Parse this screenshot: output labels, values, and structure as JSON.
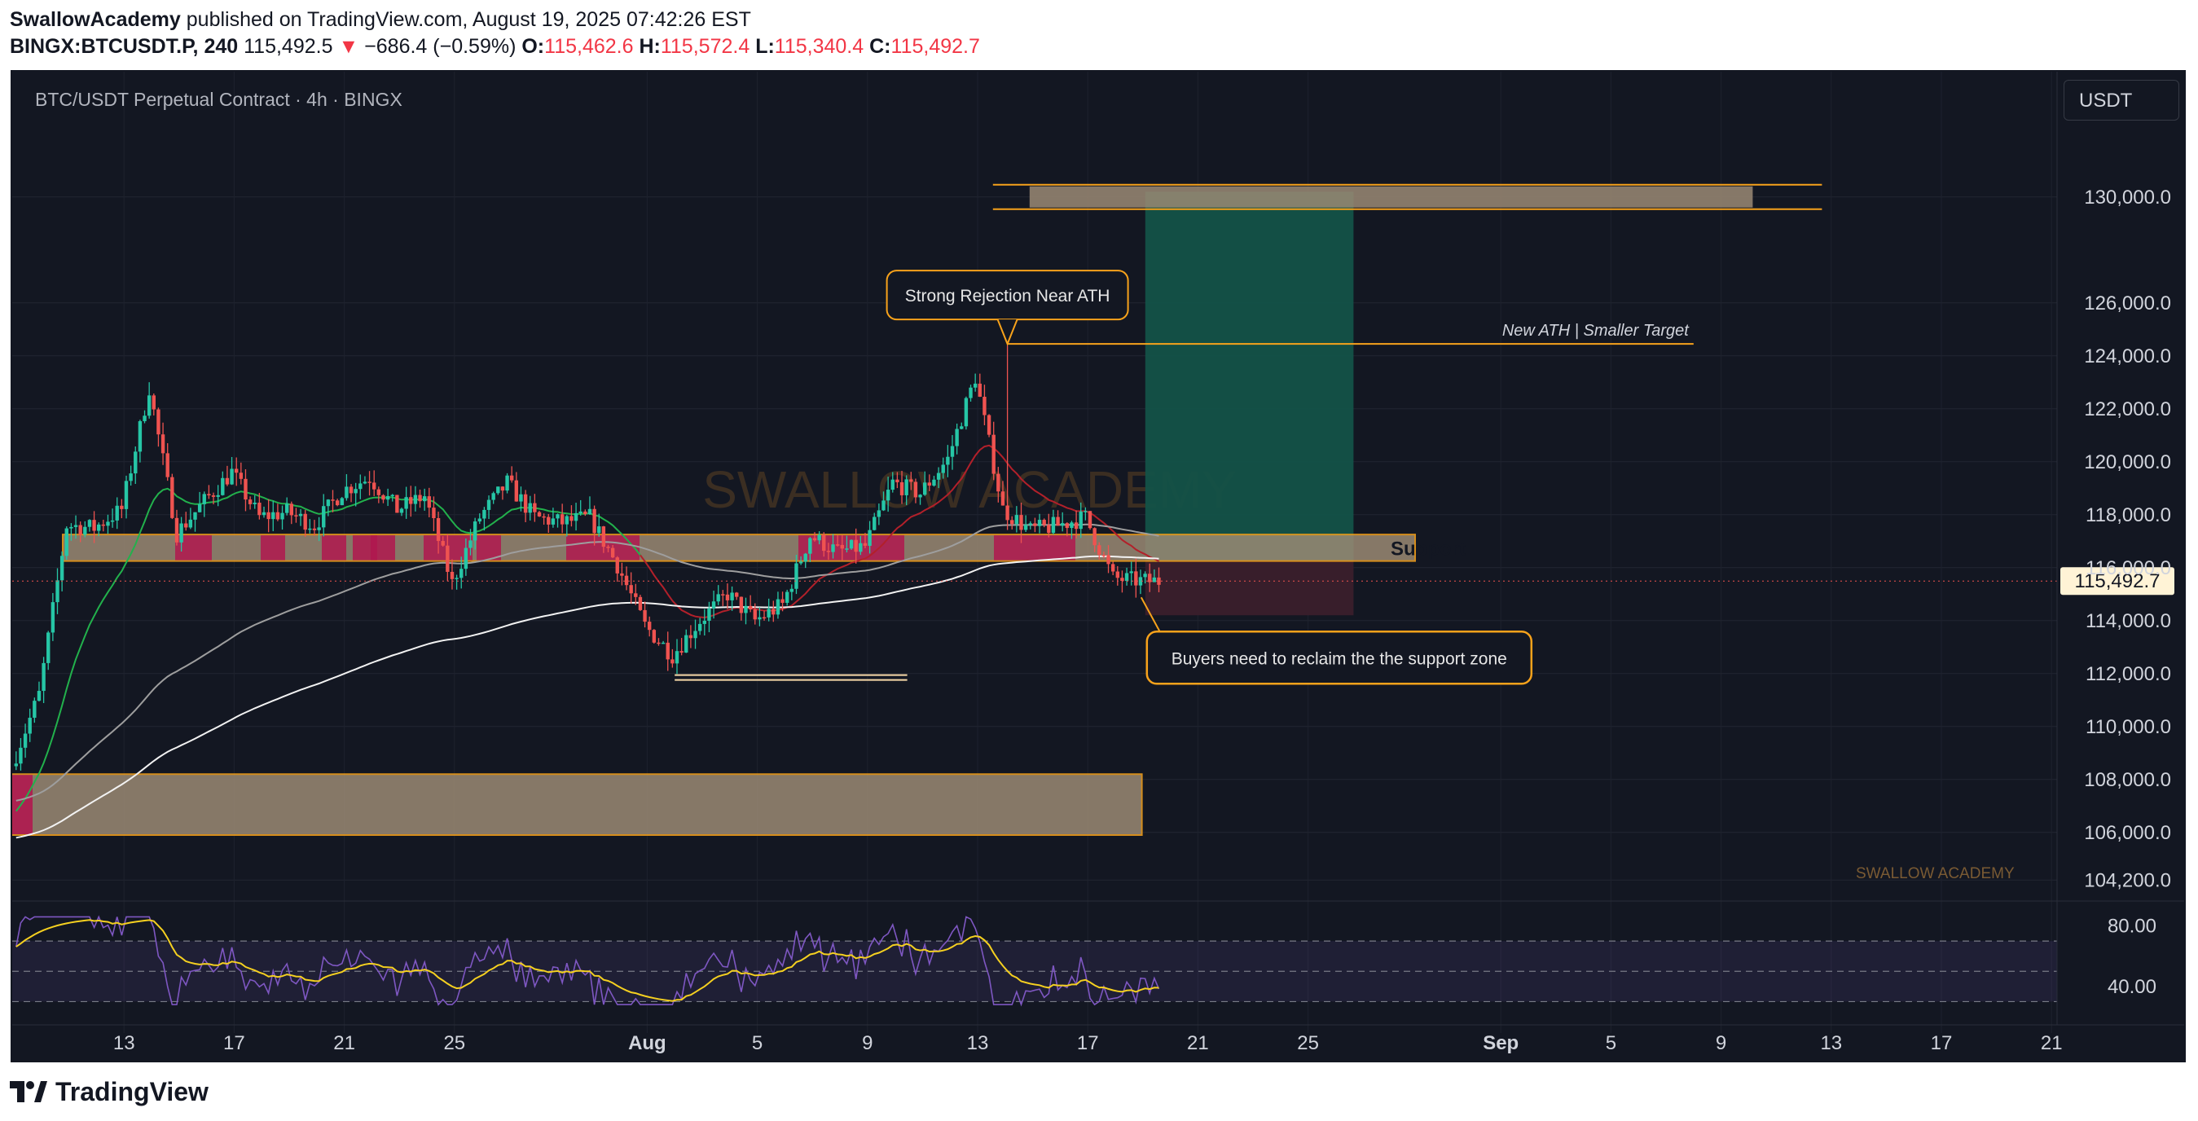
{
  "header": {
    "author": "SwallowAcademy",
    "published_text": "published on TradingView.com, August 19, 2025 07:42:26 EST",
    "symbol": "BINGX:BTCUSDT.P, 240",
    "last": "115,492.5",
    "down_arrow": "▼",
    "change": "−686.4 (−0.59%)",
    "o_label": "O:",
    "o_value": "115,462.6",
    "h_label": "H:",
    "h_value": "115,572.4",
    "l_label": "L:",
    "l_value": "115,340.4",
    "c_label": "C:",
    "c_value": "115,492.7"
  },
  "legend": {
    "title": "BTC/USDT Perpetual Contract · 4h · BINGX"
  },
  "currency": "USDT",
  "watermark": "SWALLOW ACADEMY",
  "watermark_small": "SWALLOW ACADEMY",
  "annotations": {
    "rejection": "Strong Rejection Near ATH",
    "ath": "New ATH | Smaller Target",
    "support": "Support",
    "buyers": "Buyers need to reclaim the the support zone"
  },
  "last_price_label": "115,492.7",
  "footer": {
    "brand": "TradingView"
  },
  "colors": {
    "background": "#131722",
    "zone_fill": "#9b8a74",
    "zone_border": "#f7a21b",
    "up_candle": "#26c6a6",
    "down_candle": "#ef5350",
    "profit_zone": "#135248",
    "loss_zone": "#3a1f2c",
    "rsi_line": "#7e57c2",
    "rsi_ma": "#f5d020"
  },
  "chart_data": {
    "type": "candlestick",
    "title": "BTC/USDT Perpetual Contract · 4h · BINGX",
    "y_axis": {
      "ticks": [
        130000,
        126000,
        124000,
        122000,
        120000,
        118000,
        116000,
        114000,
        112000,
        110000,
        108000,
        106000,
        104200
      ],
      "tick_labels": [
        "130,000.0",
        "126,000.0",
        "124,000.0",
        "122,000.0",
        "120,000.0",
        "118,000.0",
        "116,000.0",
        "114,000.0",
        "112,000.0",
        "110,000.0",
        "108,000.0",
        "106,000.0",
        "104,200.0"
      ],
      "ylim": [
        103500,
        133500
      ]
    },
    "x_axis": {
      "tick_labels": [
        "13",
        "17",
        "21",
        "25",
        "Aug",
        "5",
        "9",
        "13",
        "17",
        "21",
        "25",
        "Sep",
        "5",
        "9",
        "13",
        "17",
        "21"
      ],
      "bold_labels": [
        "Aug",
        "Sep"
      ]
    },
    "price_path": [
      [
        "2025-07-09",
        108500
      ],
      [
        "2025-07-10",
        111200
      ],
      [
        "2025-07-11",
        117600
      ],
      [
        "2025-07-12",
        117500
      ],
      [
        "2025-07-13",
        118200
      ],
      [
        "2025-07-14",
        122800
      ],
      [
        "2025-07-15",
        117300
      ],
      [
        "2025-07-16",
        118500
      ],
      [
        "2025-07-17",
        119600
      ],
      [
        "2025-07-18",
        117900
      ],
      [
        "2025-07-19",
        118100
      ],
      [
        "2025-07-20",
        117600
      ],
      [
        "2025-07-21",
        118900
      ],
      [
        "2025-07-22",
        119400
      ],
      [
        "2025-07-23",
        118200
      ],
      [
        "2025-07-24",
        118700
      ],
      [
        "2025-07-25",
        115400
      ],
      [
        "2025-07-26",
        117900
      ],
      [
        "2025-07-27",
        119200
      ],
      [
        "2025-07-28",
        117900
      ],
      [
        "2025-07-29",
        117700
      ],
      [
        "2025-07-30",
        117900
      ],
      [
        "2025-07-31",
        116100
      ],
      [
        "2025-08-01",
        113800
      ],
      [
        "2025-08-02",
        112700
      ],
      [
        "2025-08-03",
        114000
      ],
      [
        "2025-08-04",
        115000
      ],
      [
        "2025-08-05",
        114000
      ],
      [
        "2025-08-06",
        114600
      ],
      [
        "2025-08-07",
        117200
      ],
      [
        "2025-08-08",
        116600
      ],
      [
        "2025-08-09",
        116800
      ],
      [
        "2025-08-10",
        119200
      ],
      [
        "2025-08-11",
        118800
      ],
      [
        "2025-08-12",
        120100
      ],
      [
        "2025-08-13",
        123200
      ],
      [
        "2025-08-14",
        118200
      ],
      [
        "2025-08-15",
        117400
      ],
      [
        "2025-08-16",
        117600
      ],
      [
        "2025-08-17",
        117900
      ],
      [
        "2025-08-18",
        115600
      ],
      [
        "2025-08-19",
        115492.7
      ]
    ],
    "ath_high": 124400,
    "support_zone": [
      116250,
      117250
    ],
    "upper_target_zone": [
      129600,
      130400
    ],
    "lower_zone": [
      105900,
      108200
    ],
    "ath_line": 124450,
    "swing_low_line": 111850,
    "position": {
      "entry": 116250,
      "target": 130200,
      "stop": 114200
    },
    "last_price": 115492.7,
    "rsi": {
      "levels": [
        70,
        50,
        30
      ],
      "tick_labels": [
        "80.00",
        "40.00"
      ],
      "ylim": [
        20,
        90
      ]
    }
  }
}
